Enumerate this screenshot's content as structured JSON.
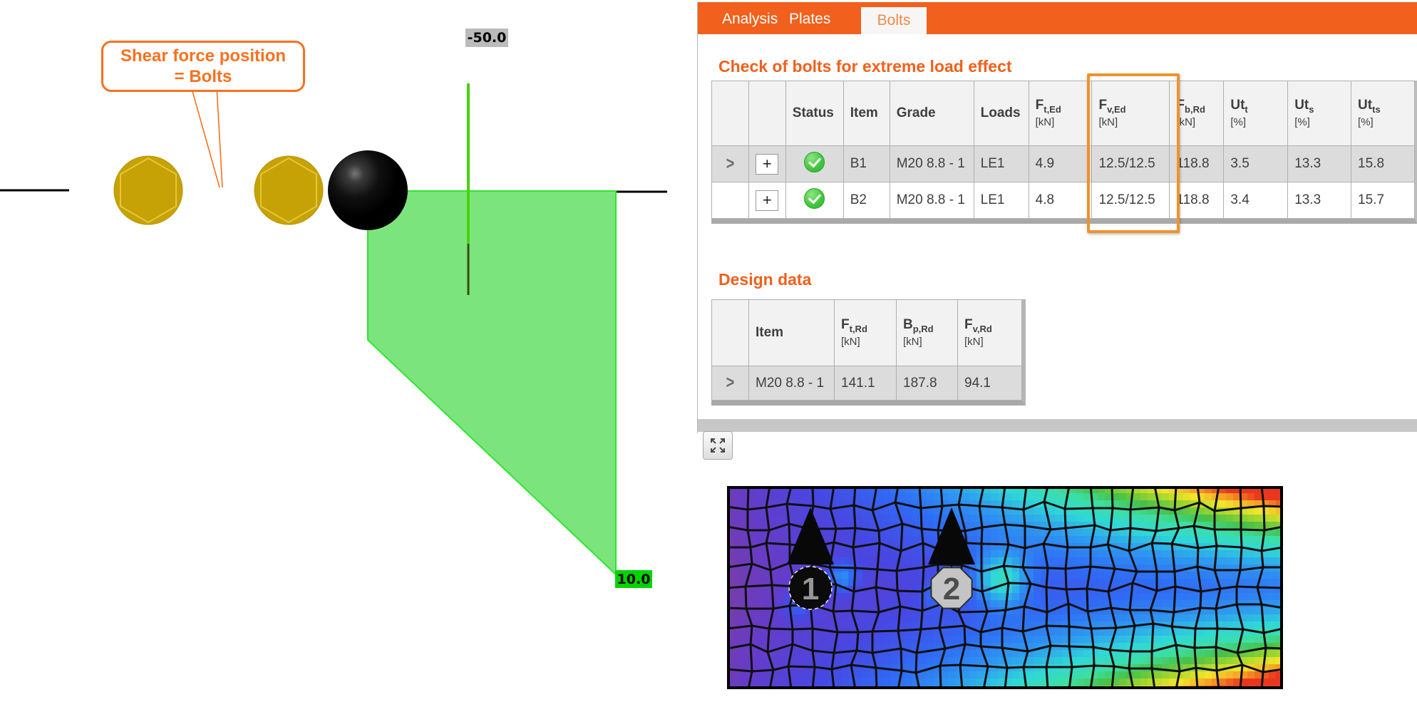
{
  "scene": {
    "callout": {
      "line1": "Shear force position",
      "line2": "= Bolts"
    },
    "labels": {
      "shear_value": "-50.0",
      "diagram_value": "10.0"
    },
    "colors": {
      "callout_orange": "#F8711F",
      "diagram_fill": "#7CE47C",
      "diagram_edge": "#2EE62E",
      "force_line_green": "#46D40E",
      "value_label_green_bg": "#00D400",
      "value_label_gray_bg": "#BBBBBB",
      "bolt_yellow": "#C7A206"
    }
  },
  "panel": {
    "accent_color": "#F1601C",
    "highlight_box_color": "#F0912C",
    "tabs": [
      {
        "label": "Analysis",
        "active": false
      },
      {
        "label": "Plates",
        "active": false
      },
      {
        "label": "Bolts",
        "active": true
      }
    ],
    "check_table": {
      "title": "Check of bolts for extreme load effect",
      "columns": [
        {
          "sym": "",
          "sub": "",
          "unit": ""
        },
        {
          "sym": "",
          "sub": "",
          "unit": ""
        },
        {
          "sym": "Status",
          "sub": "",
          "unit": ""
        },
        {
          "sym": "Item",
          "sub": "",
          "unit": ""
        },
        {
          "sym": "Grade",
          "sub": "",
          "unit": ""
        },
        {
          "sym": "Loads",
          "sub": "",
          "unit": ""
        },
        {
          "sym": "F",
          "sub": "t,Ed",
          "unit": "[kN]"
        },
        {
          "sym": "F",
          "sub": "v,Ed",
          "unit": "[kN]"
        },
        {
          "sym": "F",
          "sub": "b,Rd",
          "unit": "[kN]"
        },
        {
          "sym": "Ut",
          "sub": "t",
          "unit": "[%]"
        },
        {
          "sym": "Ut",
          "sub": "s",
          "unit": "[%]"
        },
        {
          "sym": "Ut",
          "sub": "ts",
          "unit": "[%]"
        }
      ],
      "rows": [
        {
          "chevron": ">",
          "expand": "+",
          "status": "ok",
          "cells": [
            "B1",
            "M20 8.8 - 1",
            "LE1",
            "4.9",
            "12.5/12.5",
            "118.8",
            "3.5",
            "13.3",
            "15.8"
          ]
        },
        {
          "chevron": "",
          "expand": "+",
          "status": "ok",
          "cells": [
            "B2",
            "M20 8.8 - 1",
            "LE1",
            "4.8",
            "12.5/12.5",
            "118.8",
            "3.4",
            "13.3",
            "15.7"
          ]
        }
      ]
    },
    "design_table": {
      "title": "Design data",
      "columns": [
        {
          "sym": "",
          "sub": "",
          "unit": ""
        },
        {
          "sym": "Item",
          "sub": "",
          "unit": ""
        },
        {
          "sym": "F",
          "sub": "t,Rd",
          "unit": "[kN]"
        },
        {
          "sym": "B",
          "sub": "p,Rd",
          "unit": "[kN]"
        },
        {
          "sym": "F",
          "sub": "v,Rd",
          "unit": "[kN]"
        }
      ],
      "rows": [
        {
          "chevron": ">",
          "cells": [
            "M20 8.8 - 1",
            "141.1",
            "187.8",
            "94.1"
          ]
        }
      ]
    },
    "mesh": {
      "bolts": [
        {
          "label": "1"
        },
        {
          "label": "2"
        }
      ],
      "palette": [
        [
          0.0,
          "#7c3da2"
        ],
        [
          0.1,
          "#653cc8"
        ],
        [
          0.2,
          "#4747e3"
        ],
        [
          0.3,
          "#2f6cf5"
        ],
        [
          0.4,
          "#2e9bf0"
        ],
        [
          0.5,
          "#2fd8d8"
        ],
        [
          0.6,
          "#3ddfa3"
        ],
        [
          0.68,
          "#46c048"
        ],
        [
          0.76,
          "#9fd62e"
        ],
        [
          0.84,
          "#f2e52c"
        ],
        [
          0.92,
          "#f59b24"
        ],
        [
          1.0,
          "#e8301f"
        ]
      ]
    }
  }
}
